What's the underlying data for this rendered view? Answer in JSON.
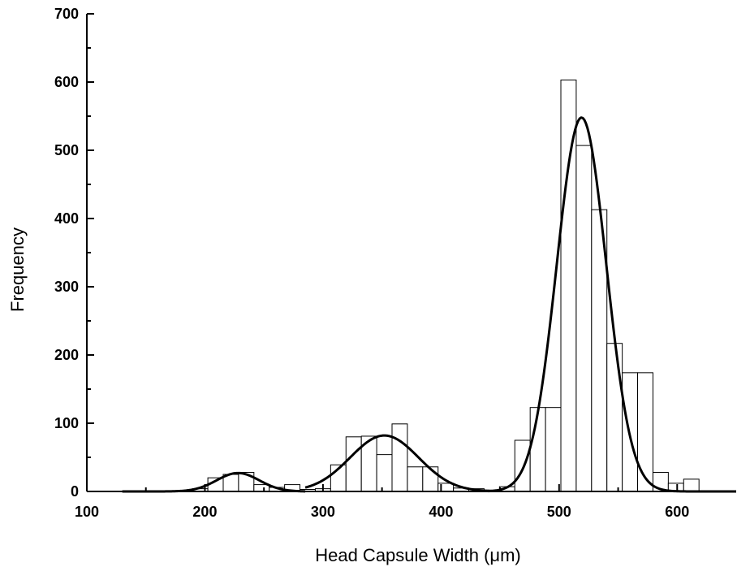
{
  "chart_data": {
    "type": "bar",
    "title": "",
    "xlabel": "Head Capsule Width (μm)",
    "ylabel": "Frequency",
    "xlim": [
      100,
      650
    ],
    "ylim": [
      0,
      700
    ],
    "x_ticks": [
      100,
      200,
      300,
      400,
      500,
      600
    ],
    "y_ticks": [
      0,
      100,
      200,
      300,
      400,
      500,
      600,
      700
    ],
    "grid": false,
    "bin_width": 13,
    "histogram": {
      "bin_centers": [
        196,
        209,
        222,
        235,
        248,
        261,
        274,
        287,
        300,
        313,
        326,
        339,
        352,
        365,
        378,
        391,
        404,
        417,
        430,
        443,
        456,
        469,
        482,
        495,
        508,
        521,
        534,
        547,
        560,
        573,
        586,
        599,
        612
      ],
      "values": [
        4,
        20,
        25,
        28,
        10,
        6,
        10,
        3,
        4,
        39,
        80,
        81,
        54,
        99,
        36,
        36,
        12,
        5,
        4,
        2,
        7,
        75,
        123,
        123,
        603,
        507,
        413,
        217,
        174,
        174,
        28,
        12,
        18
      ]
    },
    "fitted_curves": [
      {
        "mean": 228,
        "peak": 27,
        "sigma": 18,
        "x_range": [
          130,
          285
        ]
      },
      {
        "mean": 352,
        "peak": 82,
        "sigma": 29,
        "x_range": [
          285,
          442
        ]
      },
      {
        "mean": 519,
        "peak": 548,
        "sigma": 21,
        "x_range": [
          440,
          650
        ]
      }
    ]
  }
}
